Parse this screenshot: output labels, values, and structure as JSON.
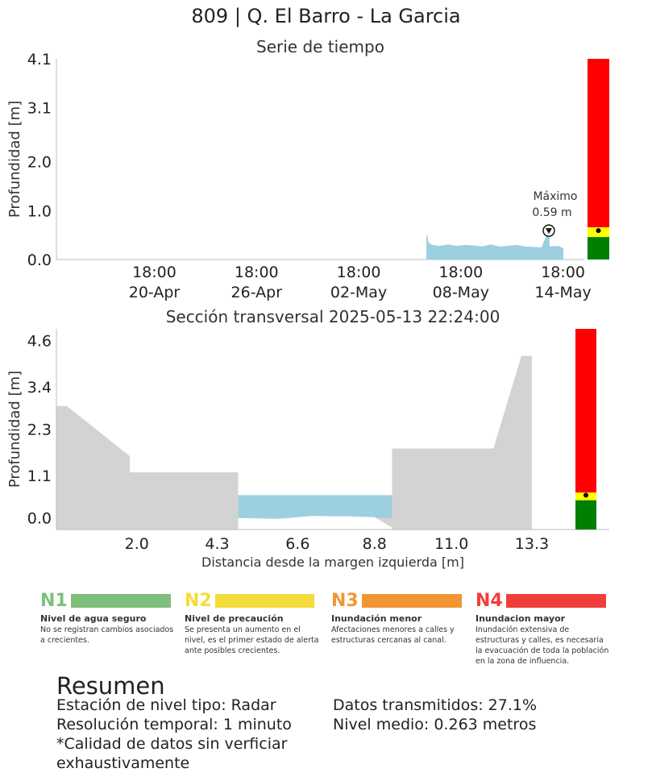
{
  "title": "809 | Q. El Barro - La Garcia",
  "chart_data": [
    {
      "type": "area",
      "title": "Serie de tiempo",
      "ylabel": "Profundidad [m]",
      "xlabel": "",
      "yticks": [
        "0.0",
        "1.0",
        "2.0",
        "3.1",
        "4.1"
      ],
      "ylim": [
        0,
        4.1
      ],
      "xticks": [
        {
          "top": "18:00",
          "bottom": "20-Apr"
        },
        {
          "top": "18:00",
          "bottom": "26-Apr"
        },
        {
          "top": "18:00",
          "bottom": "02-May"
        },
        {
          "top": "18:00",
          "bottom": "08-May"
        },
        {
          "top": "18:00",
          "bottom": "14-May"
        }
      ],
      "x_start": "2025-04-15 00:00",
      "x_end": "2025-05-16 00:00",
      "series": [
        {
          "fill_color": "#9ccfe0",
          "x": [
            "2025-05-06 18:00",
            "2025-05-06 20:00",
            "2025-05-07 00:00",
            "2025-05-07 06:00",
            "2025-05-07 12:00",
            "2025-05-08 00:00",
            "2025-05-08 12:00",
            "2025-05-09 00:00",
            "2025-05-09 12:00",
            "2025-05-10 00:00",
            "2025-05-10 12:00",
            "2025-05-11 00:00",
            "2025-05-11 12:00",
            "2025-05-12 00:00",
            "2025-05-12 12:00",
            "2025-05-13 00:00",
            "2025-05-13 12:00",
            "2025-05-13 22:00",
            "2025-05-13 22:30",
            "2025-05-14 00:00",
            "2025-05-14 12:00",
            "2025-05-14 18:00"
          ],
          "y": [
            0.5,
            0.34,
            0.3,
            0.28,
            0.27,
            0.3,
            0.27,
            0.29,
            0.28,
            0.26,
            0.3,
            0.26,
            0.27,
            0.29,
            0.26,
            0.25,
            0.24,
            0.59,
            0.27,
            0.26,
            0.27,
            0.22
          ]
        }
      ],
      "annotation": {
        "label": "Máximo",
        "value_label": "0.59 m",
        "x": "2025-05-13 22:00",
        "y": 0.59
      },
      "alert_bar": {
        "levels": [
          {
            "color": "#008000",
            "from": 0,
            "to": 0.46
          },
          {
            "color": "#ffff00",
            "from": 0.46,
            "to": 0.66
          },
          {
            "color": "#ff0000",
            "from": 0.66,
            "to": 4.1
          }
        ],
        "marker": 0.59
      }
    },
    {
      "type": "area",
      "title": "Sección transversal 2025-05-13 22:24:00",
      "ylabel": "Profundidad [m]",
      "xlabel": "Distancia desde la margen izquierda [m]",
      "yticks": [
        "0.0",
        "1.1",
        "2.3",
        "3.4",
        "4.6"
      ],
      "xticks": [
        "2.0",
        "4.3",
        "6.6",
        "8.8",
        "11.0",
        "13.3"
      ],
      "xlim": [
        -0.3,
        14.2
      ],
      "ylim": [
        -0.3,
        4.9
      ],
      "terrain": {
        "color": "#d3d3d3",
        "x": [
          -0.3,
          0.0,
          1.8,
          1.8,
          4.9,
          4.9,
          9.3,
          9.3,
          12.2,
          13.0,
          13.3,
          13.3
        ],
        "y": [
          2.9,
          2.9,
          1.6,
          1.18,
          1.18,
          0.0,
          0.0,
          1.8,
          1.8,
          4.2,
          4.2,
          -0.3
        ]
      },
      "water": {
        "color": "#9ccfe0",
        "level": 0.59,
        "bed_x": [
          4.9,
          6.0,
          7.0,
          8.0,
          8.8,
          9.3
        ],
        "bed_y": [
          0.0,
          -0.03,
          0.05,
          0.04,
          0.02,
          -0.25
        ]
      },
      "alert_bar": {
        "levels": [
          {
            "color": "#008000",
            "from": -0.3,
            "to": 0.46
          },
          {
            "color": "#ffff00",
            "from": 0.46,
            "to": 0.66
          },
          {
            "color": "#ff0000",
            "from": 0.66,
            "to": 4.9
          }
        ],
        "marker": 0.59
      }
    }
  ],
  "legend": [
    {
      "code": "N1",
      "color": "#7fbf7b",
      "code_color": "#7fbf7b",
      "title": "Nivel de agua seguro",
      "desc": "No se registran cambios asociados a crecientes."
    },
    {
      "code": "N2",
      "color": "#f4dc3a",
      "code_color": "#f4dc3a",
      "title": "Nivel de precaución",
      "desc": "Se presenta un aumento en el nivel, es el primer estado de alerta ante posibles crecientes."
    },
    {
      "code": "N3",
      "color": "#f39533",
      "code_color": "#f39533",
      "title": "Inundación menor",
      "desc": "Afectaciones menores a calles y estructuras cercanas al canal."
    },
    {
      "code": "N4",
      "color": "#f23d3d",
      "code_color": "#f23d3d",
      "title": "Inundacion mayor",
      "desc": "Inundación extensiva de estructuras y calles, es necesaria la evacuación de toda la población en la zona de influencia."
    }
  ],
  "summary": {
    "title": "Resumen",
    "left": [
      "Estación de nivel tipo: Radar",
      "Resolución temporal: 1 minuto",
      "*Calidad de datos sin verficiar exhaustivamente"
    ],
    "right": [
      "Datos transmitidos: 27.1%",
      "Nivel medio: 0.263 metros"
    ]
  }
}
